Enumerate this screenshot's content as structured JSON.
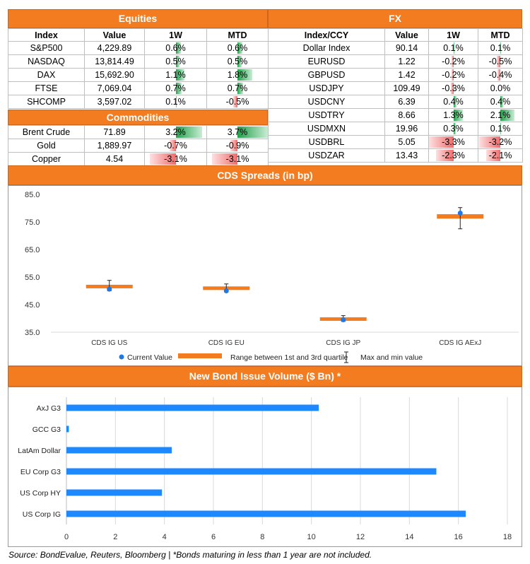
{
  "equities": {
    "title": "Equities",
    "columns": [
      "Index",
      "Value",
      "1W",
      "MTD"
    ],
    "rows": [
      {
        "name": "S&P500",
        "value": "4,229.89",
        "w1": "0.6%",
        "mtd": "0.6%",
        "w1n": 0.6,
        "mtdn": 0.6
      },
      {
        "name": "NASDAQ",
        "value": "13,814.49",
        "w1": "0.5%",
        "mtd": "0.5%",
        "w1n": 0.5,
        "mtdn": 0.5
      },
      {
        "name": "DAX",
        "value": "15,692.90",
        "w1": "1.1%",
        "mtd": "1.8%",
        "w1n": 1.1,
        "mtdn": 1.8
      },
      {
        "name": "FTSE",
        "value": "7,069.04",
        "w1": "0.7%",
        "mtd": "0.7%",
        "w1n": 0.7,
        "mtdn": 0.7
      },
      {
        "name": "SHCOMP",
        "value": "3,597.02",
        "w1": "0.1%",
        "mtd": "-0.5%",
        "w1n": 0.1,
        "mtdn": -0.5
      }
    ]
  },
  "commodities": {
    "title": "Commodities",
    "rows": [
      {
        "name": "Brent Crude",
        "value": "71.89",
        "w1": "3.2%",
        "mtd": "3.7%",
        "w1n": 3.2,
        "mtdn": 3.7
      },
      {
        "name": "Gold",
        "value": "1,889.97",
        "w1": "-0.7%",
        "mtd": "-0.9%",
        "w1n": -0.7,
        "mtdn": -0.9
      },
      {
        "name": "Copper",
        "value": "4.54",
        "w1": "-3.1%",
        "mtd": "-3.1%",
        "w1n": -3.1,
        "mtdn": -3.1
      }
    ]
  },
  "fx": {
    "title": "FX",
    "columns": [
      "Index/CCY",
      "Value",
      "1W",
      "MTD"
    ],
    "rows": [
      {
        "name": "Dollar Index",
        "value": "90.14",
        "w1": "0.1%",
        "mtd": "0.1%",
        "w1n": 0.1,
        "mtdn": 0.1
      },
      {
        "name": "EURUSD",
        "value": "1.22",
        "w1": "-0.2%",
        "mtd": "-0.5%",
        "w1n": -0.2,
        "mtdn": -0.5
      },
      {
        "name": "GBPUSD",
        "value": "1.42",
        "w1": "-0.2%",
        "mtd": "-0.4%",
        "w1n": -0.2,
        "mtdn": -0.4
      },
      {
        "name": "USDJPY",
        "value": "109.49",
        "w1": "-0.3%",
        "mtd": "0.0%",
        "w1n": -0.3,
        "mtdn": 0.0
      },
      {
        "name": "USDCNY",
        "value": "6.39",
        "w1": "0.4%",
        "mtd": "0.4%",
        "w1n": 0.4,
        "mtdn": 0.4
      },
      {
        "name": "USDTRY",
        "value": "8.66",
        "w1": "1.3%",
        "mtd": "2.1%",
        "w1n": 1.3,
        "mtdn": 2.1
      },
      {
        "name": "USDMXN",
        "value": "19.96",
        "w1": "0.3%",
        "mtd": "0.1%",
        "w1n": 0.3,
        "mtdn": 0.1
      },
      {
        "name": "USDBRL",
        "value": "5.05",
        "w1": "-3.3%",
        "mtd": "-3.2%",
        "w1n": -3.3,
        "mtdn": -3.2
      },
      {
        "name": "USDZAR",
        "value": "13.43",
        "w1": "-2.3%",
        "mtd": "-2.1%",
        "w1n": -2.3,
        "mtdn": -2.1
      }
    ]
  },
  "colors": {
    "header": "#f47c20",
    "positive": "#22a04b",
    "negative": "#f06b6b",
    "cds_dot": "#1f77e8",
    "cds_range": "#f47c20",
    "bond_bar": "#1e88ff"
  },
  "chart_data": [
    {
      "type": "scatter",
      "title": "CDS Spreads (in bp)",
      "categories": [
        "CDS IG US",
        "CDS IG EU",
        "CDS IG JP",
        "CDS IG AExJ"
      ],
      "current": [
        50.6,
        50.0,
        39.5,
        78.2
      ],
      "q1": [
        51.0,
        50.3,
        39.7,
        76.2
      ],
      "q3": [
        52.2,
        51.6,
        40.4,
        77.8
      ],
      "min": [
        50.0,
        49.6,
        38.9,
        72.5
      ],
      "max": [
        53.8,
        52.5,
        41.0,
        80.2
      ],
      "yticks": [
        "35.0",
        "45.0",
        "55.0",
        "65.0",
        "75.0",
        "85.0"
      ],
      "ylim": [
        35,
        85
      ],
      "legend": [
        "Current Value",
        "Range between 1st and 3rd quartile",
        "Max and min value"
      ],
      "legend_placement": "bottom"
    },
    {
      "type": "bar",
      "orientation": "horizontal",
      "title": "New Bond Issue Volume ($ Bn) *",
      "categories": [
        "AxJ G3",
        "GCC G3",
        "LatAm Dollar",
        "EU Corp G3",
        "US Corp HY",
        "US Corp IG"
      ],
      "values": [
        10.3,
        0.1,
        4.3,
        15.1,
        3.9,
        16.3
      ],
      "xticks": [
        "0",
        "2",
        "4",
        "6",
        "8",
        "10",
        "12",
        "14",
        "16",
        "18"
      ],
      "xlim": [
        0,
        18
      ],
      "grid": true
    }
  ],
  "source_note": "Source: BondEvalue, Reuters, Bloomberg | *Bonds maturing in less than 1 year are not included."
}
